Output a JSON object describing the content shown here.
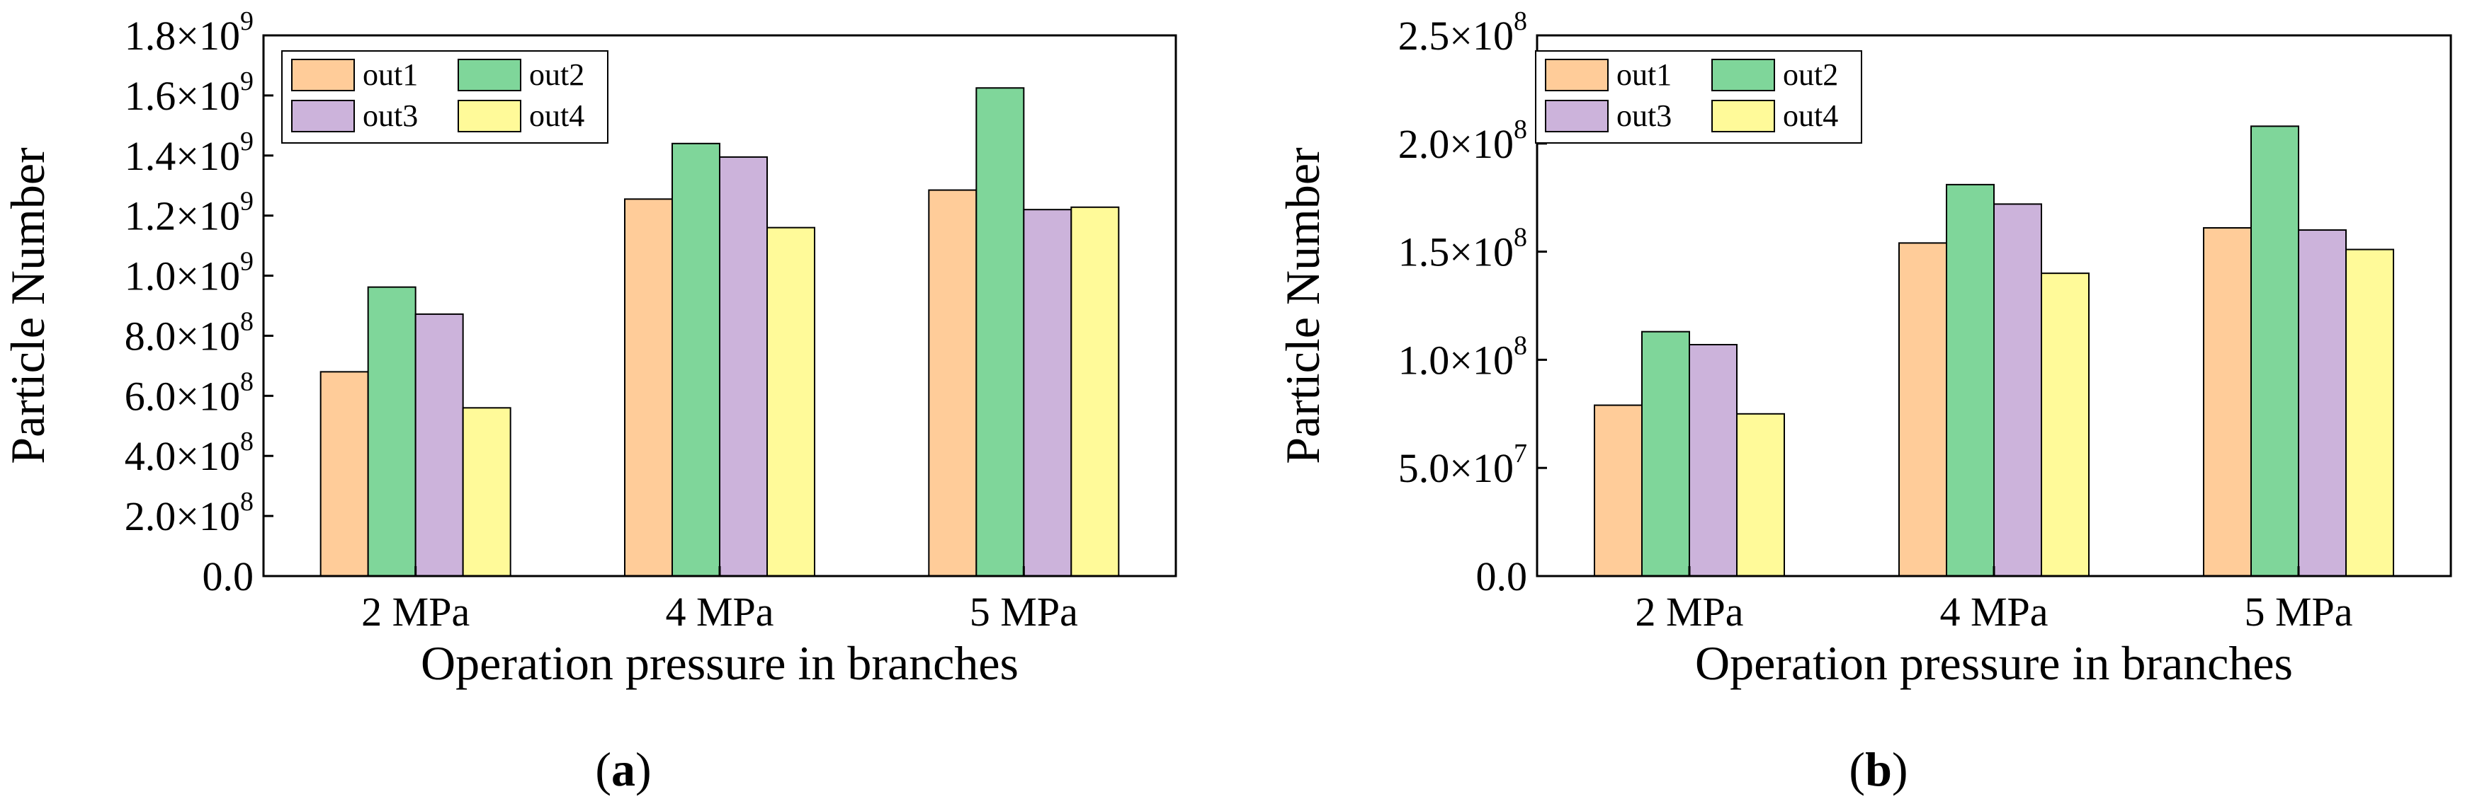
{
  "figure_labels": [
    "(a)",
    "(b)"
  ],
  "chart_data": [
    {
      "type": "bar",
      "panel": "a",
      "title": "",
      "xlabel": "Operation pressure in branches",
      "ylabel": "Particle Number",
      "categories": [
        "2 MPa",
        "4 MPa",
        "5 MPa"
      ],
      "ylim": [
        0,
        1800000000
      ],
      "yticks": [
        {
          "value": 0,
          "mantissa": "0.0",
          "exp": ""
        },
        {
          "value": 200000000,
          "mantissa": "2.0×10",
          "exp": "8"
        },
        {
          "value": 400000000,
          "mantissa": "4.0×10",
          "exp": "8"
        },
        {
          "value": 600000000,
          "mantissa": "6.0×10",
          "exp": "8"
        },
        {
          "value": 800000000,
          "mantissa": "8.0×10",
          "exp": "8"
        },
        {
          "value": 1000000000,
          "mantissa": "1.0×10",
          "exp": "9"
        },
        {
          "value": 1200000000,
          "mantissa": "1.2×10",
          "exp": "9"
        },
        {
          "value": 1400000000,
          "mantissa": "1.4×10",
          "exp": "9"
        },
        {
          "value": 1600000000,
          "mantissa": "1.6×10",
          "exp": "9"
        },
        {
          "value": 1800000000,
          "mantissa": "1.8×10",
          "exp": "9"
        }
      ],
      "legend_position": "top-left",
      "series": [
        {
          "name": "out1",
          "color": "#FFCC99",
          "values": [
            680000000,
            1255000000,
            1285000000
          ]
        },
        {
          "name": "out2",
          "color": "#7FD69A",
          "values": [
            962000000,
            1440000000,
            1625000000
          ]
        },
        {
          "name": "out3",
          "color": "#CCB3DB",
          "values": [
            872000000,
            1395000000,
            1220000000
          ]
        },
        {
          "name": "out4",
          "color": "#FFFA99",
          "values": [
            560000000,
            1160000000,
            1228000000
          ]
        }
      ]
    },
    {
      "type": "bar",
      "panel": "b",
      "title": "",
      "xlabel": "Operation pressure in branches",
      "ylabel": "Particle Number",
      "categories": [
        "2 MPa",
        "4 MPa",
        "5 MPa"
      ],
      "ylim": [
        0,
        250000000
      ],
      "yticks": [
        {
          "value": 0,
          "mantissa": "0.0",
          "exp": ""
        },
        {
          "value": 50000000,
          "mantissa": "5.0×10",
          "exp": "7"
        },
        {
          "value": 100000000,
          "mantissa": "1.0×10",
          "exp": "8"
        },
        {
          "value": 150000000,
          "mantissa": "1.5×10",
          "exp": "8"
        },
        {
          "value": 200000000,
          "mantissa": "2.0×10",
          "exp": "8"
        },
        {
          "value": 250000000,
          "mantissa": "2.5×10",
          "exp": "8"
        }
      ],
      "legend_position": "top-left",
      "series": [
        {
          "name": "out1",
          "color": "#FFCC99",
          "values": [
            79000000,
            154000000,
            161000000
          ]
        },
        {
          "name": "out2",
          "color": "#7FD69A",
          "values": [
            113000000,
            181000000,
            208000000
          ]
        },
        {
          "name": "out3",
          "color": "#CCB3DB",
          "values": [
            107000000,
            172000000,
            160000000
          ]
        },
        {
          "name": "out4",
          "color": "#FFFA99",
          "values": [
            75000000,
            140000000,
            151000000
          ]
        }
      ]
    }
  ]
}
